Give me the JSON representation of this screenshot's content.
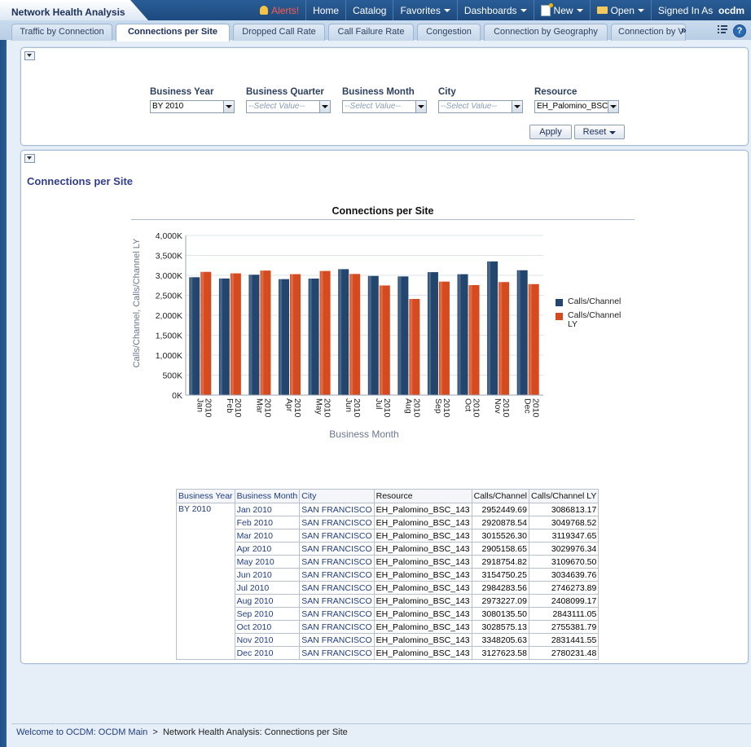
{
  "app": {
    "title": "Network Health Analysis"
  },
  "topmenu": {
    "alerts": "Alerts!",
    "home": "Home",
    "catalog": "Catalog",
    "favorites": "Favorites",
    "dashboards": "Dashboards",
    "new": "New",
    "open": "Open",
    "signed_in_as": "Signed In As",
    "user": "ocdm"
  },
  "tabs": [
    {
      "label": "Traffic by Connection"
    },
    {
      "label": "Connections per Site"
    },
    {
      "label": "Dropped Call Rate"
    },
    {
      "label": "Call Failure Rate"
    },
    {
      "label": "Congestion"
    },
    {
      "label": "Connection by Geography"
    },
    {
      "label": "Connection by V"
    }
  ],
  "tab_more": "»",
  "prompts": {
    "fields": [
      {
        "label": "Business Year",
        "value": "BY 2010"
      },
      {
        "label": "Business Quarter",
        "value": "--Select Value--"
      },
      {
        "label": "Business Month",
        "value": "--Select Value--"
      },
      {
        "label": "City",
        "value": "--Select Value--"
      },
      {
        "label": "Resource",
        "value": "EH_Palomino_BSC"
      }
    ],
    "apply": "Apply",
    "reset": "Reset"
  },
  "section": {
    "title": "Connections per Site"
  },
  "chart_data": {
    "type": "bar",
    "title": "Connections per Site",
    "xlabel": "Business Month",
    "ylabel": "Calls/Channel, Calls/Channel LY",
    "categories": [
      "Jan 2010",
      "Feb 2010",
      "Mar 2010",
      "Apr 2010",
      "May 2010",
      "Jun 2010",
      "Jul 2010",
      "Aug 2010",
      "Sep 2010",
      "Oct 2010",
      "Nov 2010",
      "Dec 2010"
    ],
    "category_lines": [
      [
        "Jan",
        "2010"
      ],
      [
        "Feb",
        "2010"
      ],
      [
        "Mar",
        "2010"
      ],
      [
        "Apr",
        "2010"
      ],
      [
        "May",
        "2010"
      ],
      [
        "Jun",
        "2010"
      ],
      [
        "Jul",
        "2010"
      ],
      [
        "Aug",
        "2010"
      ],
      [
        "Sep",
        "2010"
      ],
      [
        "Oct",
        "2010"
      ],
      [
        "Nov",
        "2010"
      ],
      [
        "Dec",
        "2010"
      ]
    ],
    "series": [
      {
        "name": "Calls/Channel",
        "color": "#23466f",
        "values": [
          2952449.69,
          2920878.54,
          3015526.3,
          2905158.65,
          2918754.82,
          3154750.25,
          2984283.56,
          2973227.09,
          3080135.5,
          3028575.13,
          3348205.63,
          3127623.58
        ]
      },
      {
        "name": "Calls/Channel LY",
        "color": "#d54a1f",
        "values": [
          3086813.17,
          3049768.52,
          3119347.65,
          3029976.34,
          3109670.5,
          3034639.76,
          2746273.89,
          2408099.17,
          2843111.05,
          2755381.79,
          2831441.55,
          2780231.48
        ]
      }
    ],
    "ylim": [
      0,
      4000000
    ],
    "yticks": [
      "0K",
      "500K",
      "1,000K",
      "1,500K",
      "2,000K",
      "2,500K",
      "3,000K",
      "3,500K",
      "4,000K"
    ],
    "grid": true,
    "legend": "right"
  },
  "table": {
    "headers": [
      "Business Year",
      "Business Month",
      "City",
      "Resource",
      "Calls/Channel",
      "Calls/Channel LY"
    ],
    "year": "BY 2010",
    "rows": [
      [
        "Jan 2010",
        "SAN FRANCISCO",
        "EH_Palomino_BSC_143",
        "2952449.69",
        "3086813.17"
      ],
      [
        "Feb 2010",
        "SAN FRANCISCO",
        "EH_Palomino_BSC_143",
        "2920878.54",
        "3049768.52"
      ],
      [
        "Mar 2010",
        "SAN FRANCISCO",
        "EH_Palomino_BSC_143",
        "3015526.30",
        "3119347.65"
      ],
      [
        "Apr 2010",
        "SAN FRANCISCO",
        "EH_Palomino_BSC_143",
        "2905158.65",
        "3029976.34"
      ],
      [
        "May 2010",
        "SAN FRANCISCO",
        "EH_Palomino_BSC_143",
        "2918754.82",
        "3109670.50"
      ],
      [
        "Jun 2010",
        "SAN FRANCISCO",
        "EH_Palomino_BSC_143",
        "3154750.25",
        "3034639.76"
      ],
      [
        "Jul 2010",
        "SAN FRANCISCO",
        "EH_Palomino_BSC_143",
        "2984283.56",
        "2746273.89"
      ],
      [
        "Aug 2010",
        "SAN FRANCISCO",
        "EH_Palomino_BSC_143",
        "2973227.09",
        "2408099.17"
      ],
      [
        "Sep 2010",
        "SAN FRANCISCO",
        "EH_Palomino_BSC_143",
        "3080135.50",
        "2843111.05"
      ],
      [
        "Oct 2010",
        "SAN FRANCISCO",
        "EH_Palomino_BSC_143",
        "3028575.13",
        "2755381.79"
      ],
      [
        "Nov 2010",
        "SAN FRANCISCO",
        "EH_Palomino_BSC_143",
        "3348205.63",
        "2831441.55"
      ],
      [
        "Dec 2010",
        "SAN FRANCISCO",
        "EH_Palomino_BSC_143",
        "3127623.58",
        "2780231.48"
      ]
    ]
  },
  "footer": {
    "crumb_link": "Welcome to OCDM: OCDM Main",
    "separator": ">",
    "crumb_current": "Network Health Analysis: Connections per Site"
  }
}
